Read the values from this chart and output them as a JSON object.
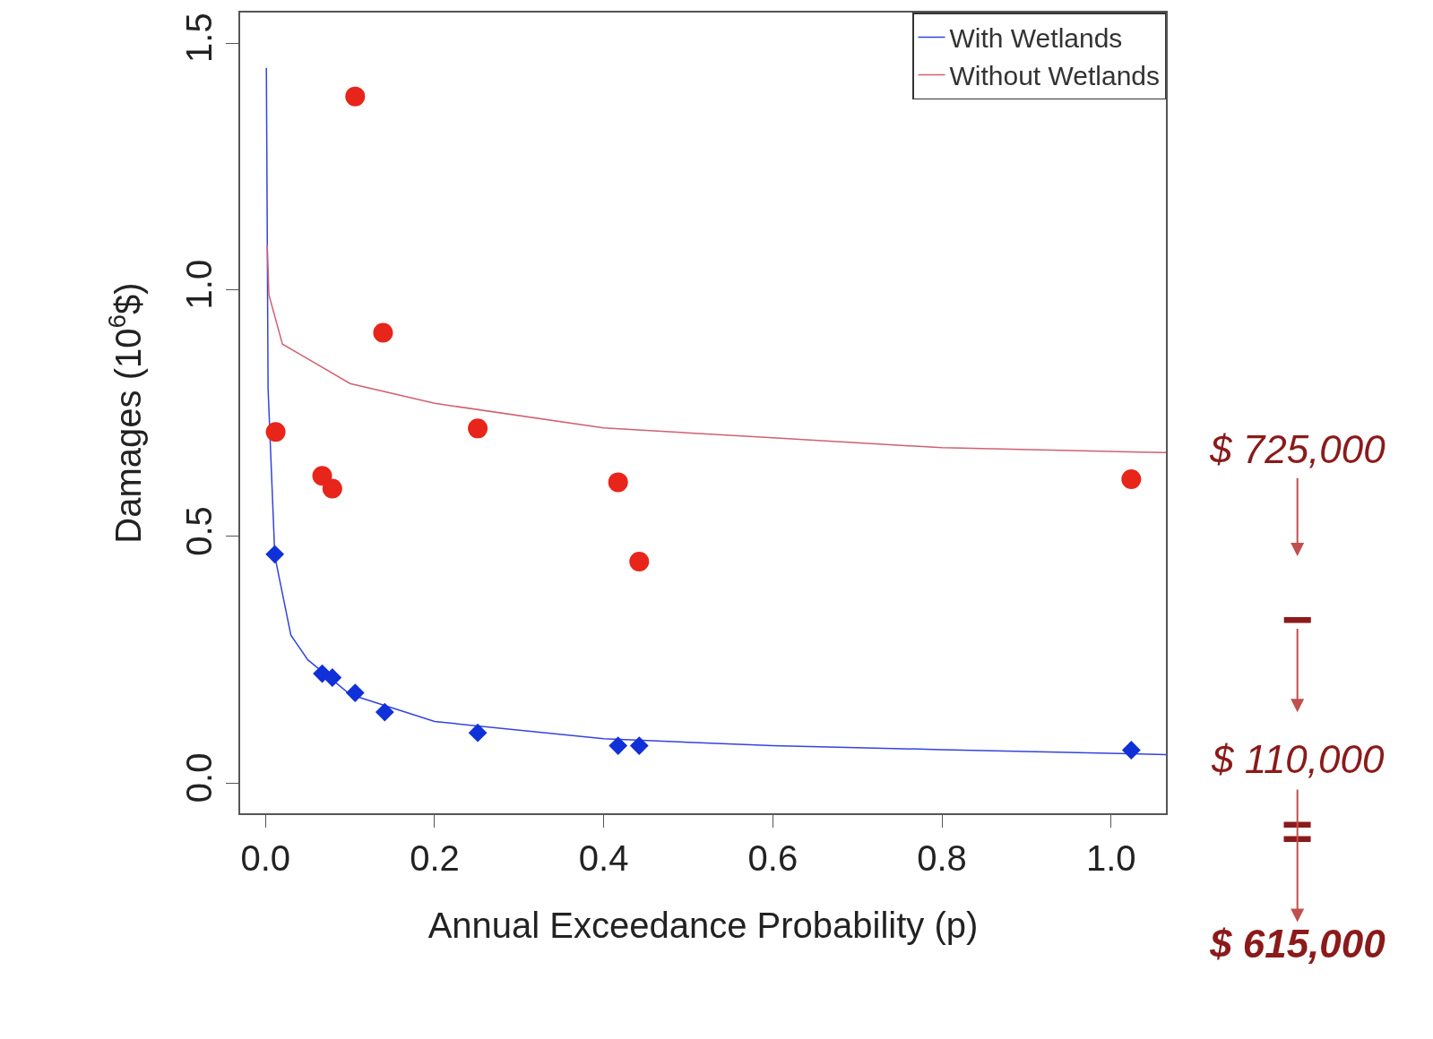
{
  "chart_data": {
    "type": "scatter",
    "xlabel": "Annual Exceedance Probability (p)",
    "ylabel": "Damages (10$^{6}$$)",
    "xlim": [
      -0.03,
      1.065
    ],
    "ylim": [
      -0.061,
      1.562
    ],
    "xticks": [
      {
        "value": 0,
        "label": "0.0"
      },
      {
        "value": 0.2,
        "label": "0.2"
      },
      {
        "value": 0.4,
        "label": "0.4"
      },
      {
        "value": 0.6,
        "label": "0.6"
      },
      {
        "value": 0.8,
        "label": "0.8"
      },
      {
        "value": 1,
        "label": "1.0"
      }
    ],
    "yticks": [
      {
        "value": 0,
        "label": "0.0"
      },
      {
        "value": 0.5,
        "label": "0.5"
      },
      {
        "value": 1,
        "label": "1.0"
      },
      {
        "value": 1.5,
        "label": "1.5"
      }
    ],
    "legend": "top right",
    "series": [
      {
        "name": "With Wetlands",
        "type": "line",
        "color": "#3344dd",
        "marker": "none",
        "x": [
          0.001,
          0.003,
          0.011,
          0.03,
          0.05,
          0.1,
          0.2,
          0.4,
          0.6,
          0.8,
          1.065
        ],
        "values": [
          1.45,
          0.8,
          0.46,
          0.3,
          0.25,
          0.18,
          0.125,
          0.09,
          0.076,
          0.068,
          0.058
        ]
      },
      {
        "name": "Without Wetlands",
        "type": "line",
        "color": "#d06070",
        "marker": "none",
        "x": [
          0.002,
          0.004,
          0.02,
          0.05,
          0.1,
          0.2,
          0.4,
          0.6,
          0.8,
          1.065
        ],
        "values": [
          1.09,
          0.99,
          0.89,
          0.86,
          0.81,
          0.77,
          0.72,
          0.7,
          0.68,
          0.67
        ]
      },
      {
        "color": "#e8251a",
        "marker": "circle",
        "x": [
          0.012,
          0.106,
          0.139,
          0.251,
          0.067,
          0.079,
          0.417,
          0.442,
          1.024
        ],
        "values": [
          0.712,
          1.392,
          0.913,
          0.719,
          0.623,
          0.597,
          0.61,
          0.449,
          0.616
        ]
      },
      {
        "color": "#1030d8",
        "marker": "diamond",
        "x": [
          0.011,
          0.067,
          0.079,
          0.106,
          0.141,
          0.251,
          0.417,
          0.442,
          1.024
        ],
        "values": [
          0.464,
          0.222,
          0.214,
          0.183,
          0.144,
          0.102,
          0.076,
          0.076,
          0.067
        ]
      }
    ],
    "annotations": [
      "$ 725,000",
      "−",
      "$ 110,000",
      "=",
      "$ 615,000"
    ]
  }
}
